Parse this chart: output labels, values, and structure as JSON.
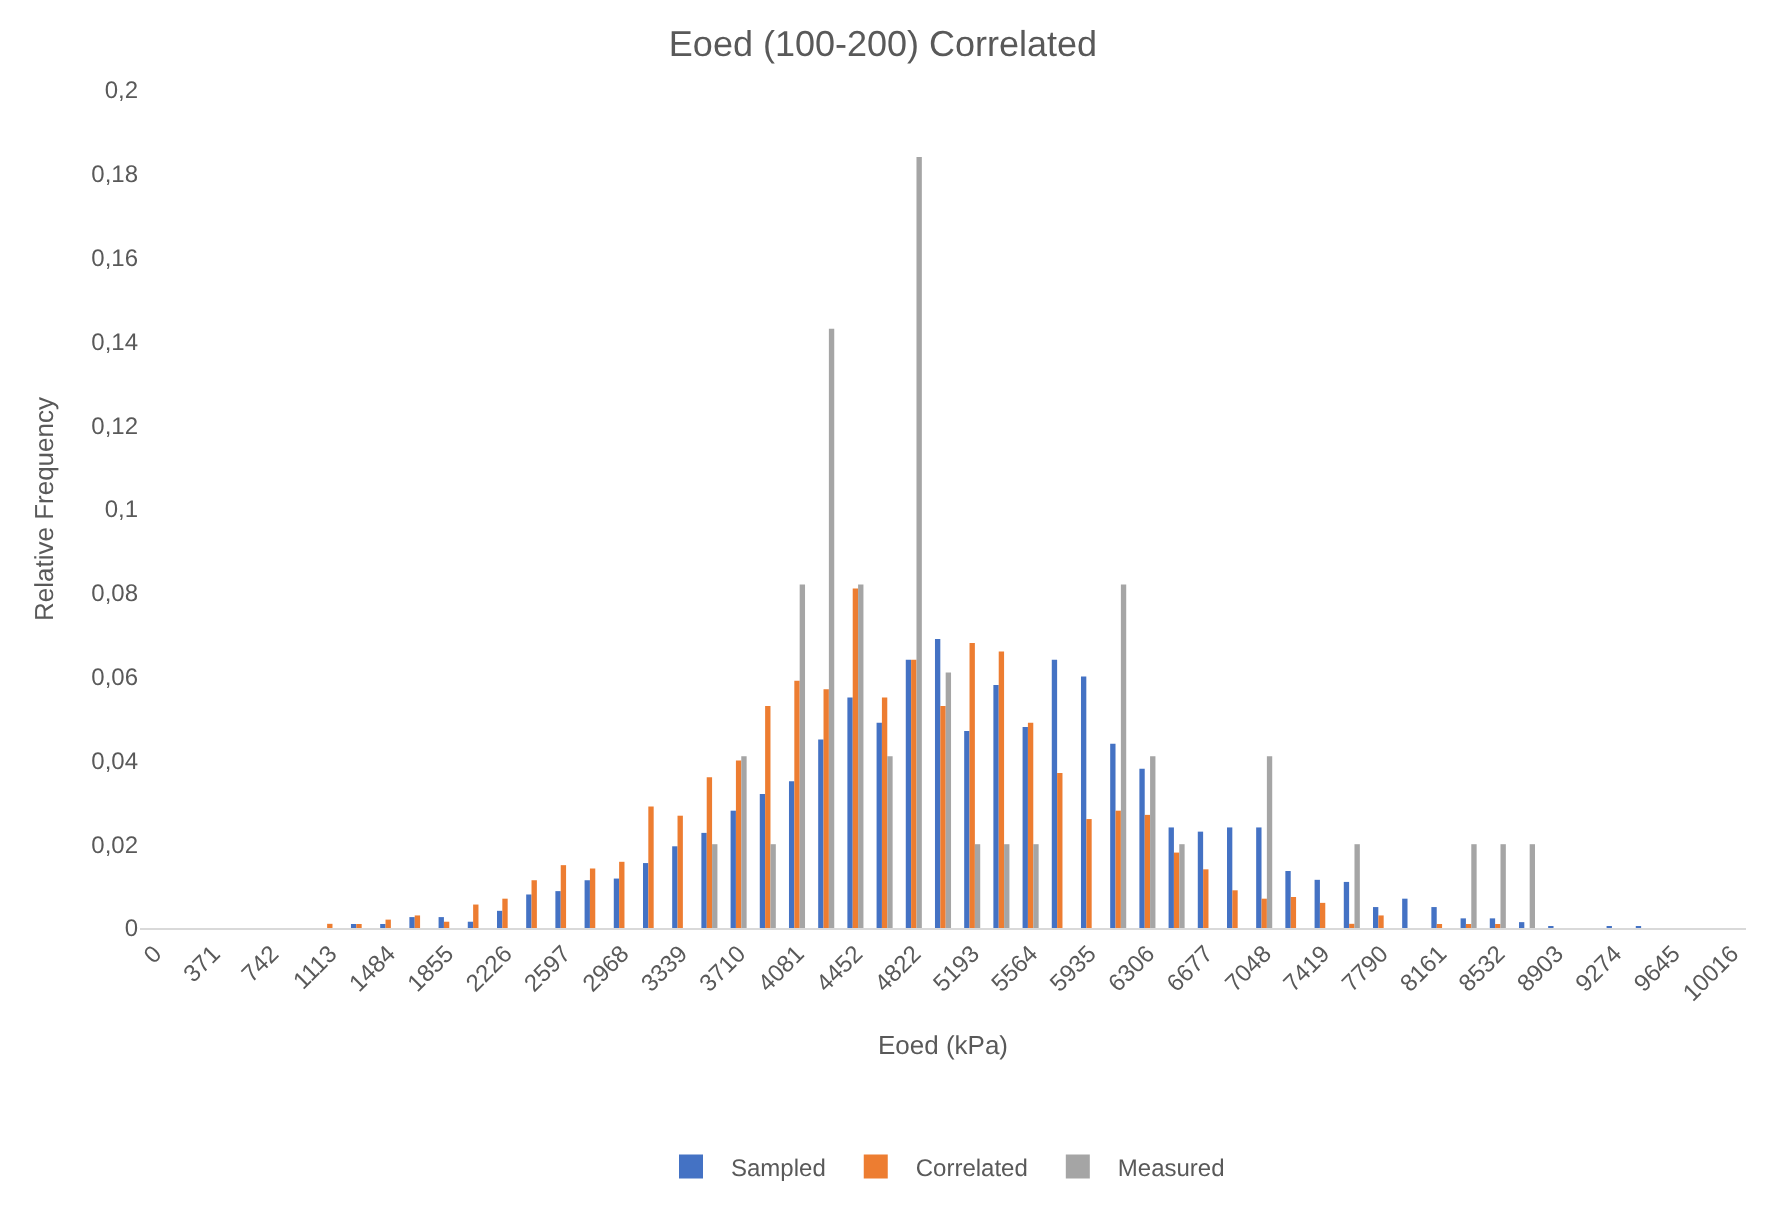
{
  "chart_data": {
    "type": "bar",
    "title": "Eoed (100-200) Correlated",
    "xlabel": "Eoed (kPa)",
    "ylabel": "Relative Frequency",
    "categories": [
      "0",
      null,
      "371",
      null,
      "742",
      null,
      "1113",
      null,
      "1484",
      null,
      "1855",
      null,
      "2226",
      null,
      "2597",
      null,
      "2968",
      null,
      "3339",
      null,
      "3710",
      null,
      "4081",
      null,
      "4452",
      null,
      "4822",
      null,
      "5193",
      null,
      "5564",
      null,
      "5935",
      null,
      "6306",
      null,
      "6677",
      null,
      "7048",
      null,
      "7419",
      null,
      "7790",
      null,
      "8161",
      null,
      "8532",
      null,
      "8903",
      null,
      "9274",
      null,
      "9645",
      null,
      "10016"
    ],
    "series": [
      {
        "name": "Sampled",
        "color": "#4472c4",
        "values": [
          0,
          0,
          0,
          0,
          0,
          0,
          0,
          0.0008,
          0.0005,
          0.0026,
          0.0026,
          0.0015,
          0.0041,
          0.008,
          0.0088,
          0.0114,
          0.0118,
          0.0155,
          0.0195,
          0.0227,
          0.028,
          0.032,
          0.035,
          0.045,
          0.055,
          0.049,
          0.064,
          0.069,
          0.047,
          0.058,
          0.048,
          0.064,
          0.06,
          0.044,
          0.038,
          0.024,
          0.023,
          0.024,
          0.024,
          0.0136,
          0.0115,
          0.011,
          0.005,
          0.007,
          0.005,
          0.0023,
          0.0023,
          0.0014,
          0.0004,
          0,
          0.0004,
          0.0004,
          0,
          0,
          0
        ]
      },
      {
        "name": "Correlated",
        "color": "#ed7d31",
        "values": [
          0,
          0,
          0,
          0,
          0,
          0,
          0.001,
          0.0008,
          0.002,
          0.003,
          0.0015,
          0.0056,
          0.007,
          0.0114,
          0.015,
          0.0142,
          0.0158,
          0.029,
          0.0268,
          0.036,
          0.04,
          0.053,
          0.059,
          0.057,
          0.081,
          0.055,
          0.064,
          0.053,
          0.068,
          0.066,
          0.049,
          0.037,
          0.026,
          0.028,
          0.027,
          0.018,
          0.014,
          0.009,
          0.007,
          0.0074,
          0.006,
          0.001,
          0.003,
          0,
          0.0006,
          0.0006,
          0.0006,
          0,
          0,
          0,
          0,
          0,
          0,
          0,
          0
        ]
      },
      {
        "name": "Measured",
        "color": "#a5a5a5",
        "values": [
          0,
          0,
          0,
          0,
          0,
          0,
          0,
          0,
          0,
          0,
          0,
          0,
          0,
          0,
          0,
          0,
          0,
          0,
          0,
          0.02,
          0.041,
          0.02,
          0.082,
          0.143,
          0.082,
          0.041,
          0.184,
          0.061,
          0.02,
          0.02,
          0.02,
          0,
          0,
          0.082,
          0.041,
          0.02,
          0,
          0,
          0.041,
          0,
          0,
          0.02,
          0,
          0,
          0,
          0.02,
          0.02,
          0.02,
          0,
          0,
          0,
          0,
          0,
          0,
          0
        ]
      }
    ],
    "ylim": [
      0,
      0.2
    ],
    "yticks": [
      {
        "value": 0,
        "label": "0"
      },
      {
        "value": 0.02,
        "label": "0,02"
      },
      {
        "value": 0.04,
        "label": "0,04"
      },
      {
        "value": 0.06,
        "label": "0,06"
      },
      {
        "value": 0.08,
        "label": "0,08"
      },
      {
        "value": 0.1,
        "label": "0,1"
      },
      {
        "value": 0.12,
        "label": "0,12"
      },
      {
        "value": 0.14,
        "label": "0,14"
      },
      {
        "value": 0.16,
        "label": "0,16"
      },
      {
        "value": 0.18,
        "label": "0,18"
      },
      {
        "value": 0.2,
        "label": "0,2"
      }
    ],
    "grid": false,
    "legend": "bottom"
  }
}
